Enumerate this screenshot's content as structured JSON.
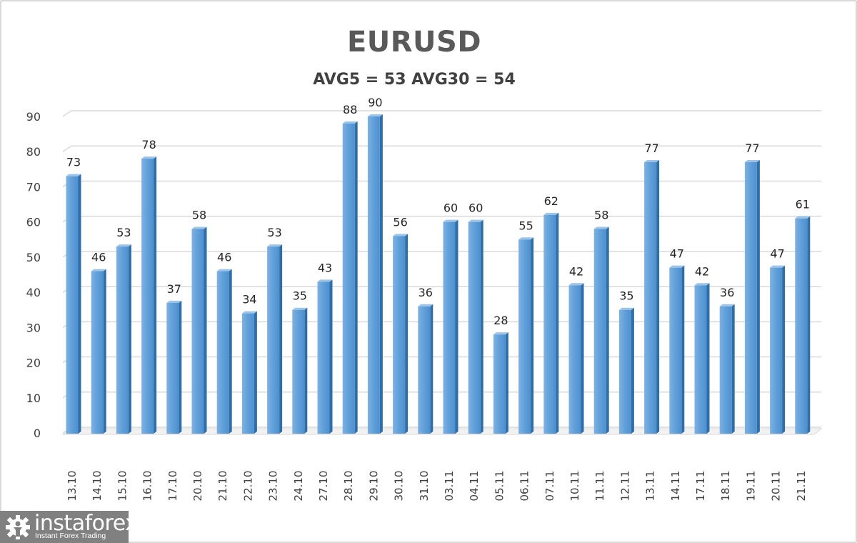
{
  "chart_data": {
    "type": "bar",
    "title": "EURUSD",
    "subtitle": "AVG5 = 53 AVG30 = 54",
    "xlabel": "",
    "ylabel": "",
    "ylim": [
      0,
      90
    ],
    "yticks": [
      0,
      10,
      20,
      30,
      40,
      50,
      60,
      70,
      80,
      90
    ],
    "grid": true,
    "legend": "none",
    "style": "3d-column",
    "bar_color": "#5b9bd5",
    "categories": [
      "13.10",
      "14.10",
      "15.10",
      "16.10",
      "17.10",
      "20.10",
      "21.10",
      "22.10",
      "23.10",
      "24.10",
      "27.10",
      "28.10",
      "29.10",
      "30.10",
      "31.10",
      "03.11",
      "04.11",
      "05.11",
      "06.11",
      "07.11",
      "10.11",
      "11.11",
      "12.11",
      "13.11",
      "14.11",
      "17.11",
      "18.11",
      "19.11",
      "20.11",
      "21.11"
    ],
    "values": [
      73,
      46,
      53,
      78,
      37,
      58,
      46,
      34,
      53,
      35,
      43,
      88,
      90,
      56,
      36,
      60,
      60,
      28,
      55,
      62,
      42,
      58,
      35,
      77,
      47,
      42,
      36,
      77,
      47,
      61
    ]
  },
  "header": {
    "title": "EURUSD",
    "subtitle": "AVG5 = 53 AVG30 = 54"
  },
  "watermark": {
    "brand": "instaforex",
    "tagline": "Instant Forex Trading",
    "icon": "gear-person-icon"
  }
}
